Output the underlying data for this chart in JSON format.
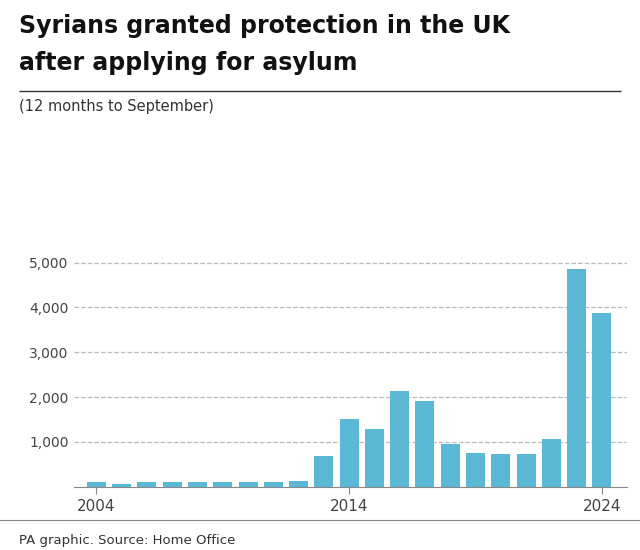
{
  "title_line1": "Syrians granted protection in the UK",
  "title_line2": "after applying for asylum",
  "subtitle": "(12 months to September)",
  "caption": "PA graphic. Source: Home Office",
  "bar_color": "#5bb8d4",
  "background_color": "#ffffff",
  "years": [
    2004,
    2005,
    2006,
    2007,
    2008,
    2009,
    2010,
    2011,
    2012,
    2013,
    2014,
    2015,
    2016,
    2017,
    2018,
    2019,
    2020,
    2021,
    2022,
    2023,
    2024
  ],
  "values": [
    95,
    60,
    100,
    115,
    110,
    115,
    110,
    115,
    130,
    680,
    1520,
    1280,
    2130,
    1910,
    960,
    760,
    720,
    720,
    1060,
    4860,
    3870
  ],
  "ylim": [
    0,
    5400
  ],
  "yticks": [
    1000,
    2000,
    3000,
    4000,
    5000
  ],
  "ytick_labels": [
    "1,000",
    "2,000",
    "3,000",
    "4,000",
    "5,000"
  ],
  "xtick_positions": [
    2004,
    2014,
    2024
  ],
  "grid_color": "#bbbbbb",
  "title_fontsize": 17,
  "subtitle_fontsize": 10.5,
  "caption_fontsize": 9.5,
  "tick_fontsize": 10
}
